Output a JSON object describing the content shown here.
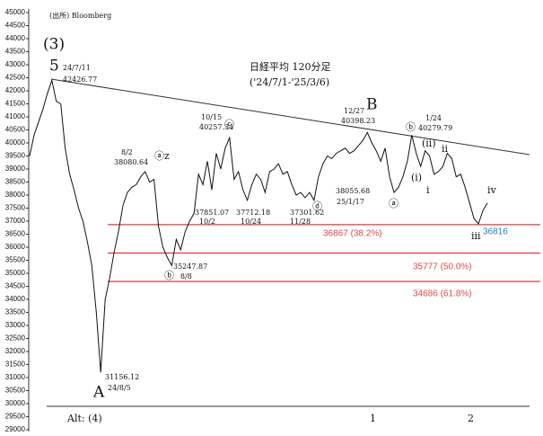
{
  "chart_data": {
    "type": "line",
    "series": [
      {
        "color": "#111111",
        "values": [
          39500,
          40300,
          40800,
          41300,
          41900,
          42400,
          41600,
          41500,
          39800,
          38800,
          38200,
          37500,
          37000,
          36200,
          35300,
          33500,
          31200,
          34000,
          34800,
          35800,
          36600,
          37600,
          38100,
          38300,
          38400,
          38700,
          38900,
          38500,
          38600,
          36800,
          36000,
          35600,
          35300,
          36300,
          35900,
          36600,
          37000,
          37300,
          38800,
          38400,
          39300,
          38200,
          39600,
          39000,
          39800,
          40200,
          38600,
          38900,
          38200,
          37800,
          38400,
          38800,
          38600,
          38100,
          38900,
          39000,
          39200,
          38800,
          38900,
          38400,
          38000,
          38100,
          37900,
          38100,
          37800,
          38700,
          39200,
          39500,
          39400,
          39600,
          39700,
          39800,
          39600,
          39700,
          39900,
          40100,
          40400,
          40000,
          39700,
          39300,
          39800,
          38700,
          38100,
          38300,
          38700,
          39300,
          40300,
          39600,
          39100,
          39700,
          39500,
          38800,
          38900,
          39100,
          39600,
          39400,
          38700,
          38800,
          38300,
          37700,
          37100,
          36900,
          37400,
          37700
        ]
      }
    ],
    "ylim": [
      29000,
      45000
    ],
    "yticks": [
      29000,
      29500,
      30000,
      30500,
      31000,
      31500,
      32000,
      32500,
      33000,
      33500,
      34000,
      34500,
      35000,
      35500,
      36000,
      36500,
      37000,
      37500,
      38000,
      38500,
      39000,
      39500,
      40000,
      40500,
      41000,
      41500,
      42000,
      42500,
      43000,
      43500,
      44000,
      44500,
      45000
    ],
    "hlines": [
      {
        "value": 36867,
        "label": "36867 (38.2%)"
      },
      {
        "value": 35777,
        "label": "35777 (50.0%)"
      },
      {
        "value": 34686,
        "label": "34686 (61.8%)"
      }
    ],
    "hline_color": "#e03a3a",
    "low_label": {
      "value": 36816,
      "label": "36816"
    },
    "annotations": [
      "(出所) Bloomberg",
      "(3)",
      "5",
      "24/7/11",
      "42426.77",
      "日経平均 120分足",
      "('24/7/1-'25/3/6)",
      "B",
      "12/27",
      "40398.23",
      "10/15",
      "40257.34",
      "ⓒ",
      "8/2",
      "38080.64",
      "ⓐz",
      "ⓑ",
      "1/24",
      "40279.79",
      "(ii)",
      "ii",
      "(i)",
      "i",
      "iv",
      "iii",
      "37851.07",
      "10/2",
      "37712.18",
      "10/24",
      "37301.62",
      "11/28",
      "ⓓ",
      "38055.68",
      "25/1/17",
      "ⓐ",
      "ⓑ",
      "35247.87",
      "8/8",
      "31156.12",
      "24/8/5",
      "A",
      "Alt: (4)",
      "1",
      "2"
    ]
  }
}
